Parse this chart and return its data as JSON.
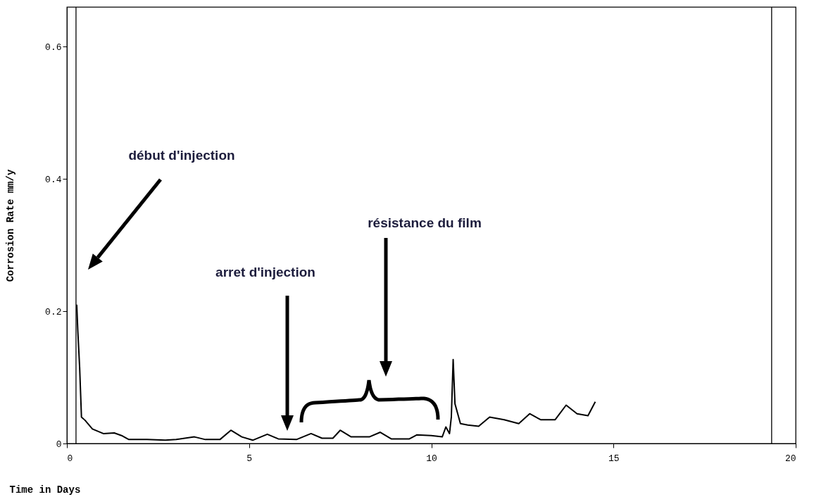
{
  "chart_data": {
    "type": "line",
    "xlabel": "Time in Days",
    "ylabel": "Corrosion Rate mm/y",
    "xlim": [
      0,
      20
    ],
    "xticks": [
      0,
      5,
      10,
      15,
      20
    ],
    "ylim": [
      0,
      0.66
    ],
    "yticks": [
      0,
      0.2,
      0.4,
      0.6
    ],
    "grid": false,
    "marker": "none",
    "line_style": "solid",
    "series": [
      {
        "color": "#000000",
        "x": [
          0.27,
          0.3,
          0.35,
          0.4,
          0.5,
          0.7,
          1.0,
          1.3,
          1.5,
          1.7,
          2.2,
          2.7,
          3.0,
          3.5,
          3.8,
          4.2,
          4.5,
          4.8,
          5.1,
          5.5,
          5.8,
          6.3,
          6.7,
          7.0,
          7.3,
          7.5,
          7.8,
          8.3,
          8.6,
          8.9,
          9.4,
          9.6,
          10.0,
          10.3,
          10.4,
          10.5,
          10.55,
          10.6,
          10.65,
          10.8,
          11.0,
          11.3,
          11.6,
          12.0,
          12.4,
          12.7,
          13.0,
          13.4,
          13.7,
          14.0,
          14.3,
          14.5
        ],
        "values": [
          0.21,
          0.17,
          0.115,
          0.04,
          0.035,
          0.022,
          0.015,
          0.016,
          0.012,
          0.006,
          0.006,
          0.005,
          0.006,
          0.01,
          0.006,
          0.006,
          0.02,
          0.01,
          0.005,
          0.014,
          0.007,
          0.006,
          0.015,
          0.008,
          0.008,
          0.02,
          0.01,
          0.01,
          0.017,
          0.007,
          0.007,
          0.013,
          0.012,
          0.01,
          0.025,
          0.015,
          0.04,
          0.127,
          0.06,
          0.03,
          0.028,
          0.026,
          0.04,
          0.036,
          0.03,
          0.045,
          0.036,
          0.036,
          0.058,
          0.045,
          0.042,
          0.063
        ]
      }
    ],
    "ref_lines": [
      {
        "axis": "x",
        "value": 0.25,
        "color": "#000000"
      },
      {
        "axis": "x",
        "value": 19.34,
        "color": "#000000"
      }
    ],
    "annotations": [
      "début d'injection",
      "arret d'injection",
      "résistance du film"
    ]
  }
}
